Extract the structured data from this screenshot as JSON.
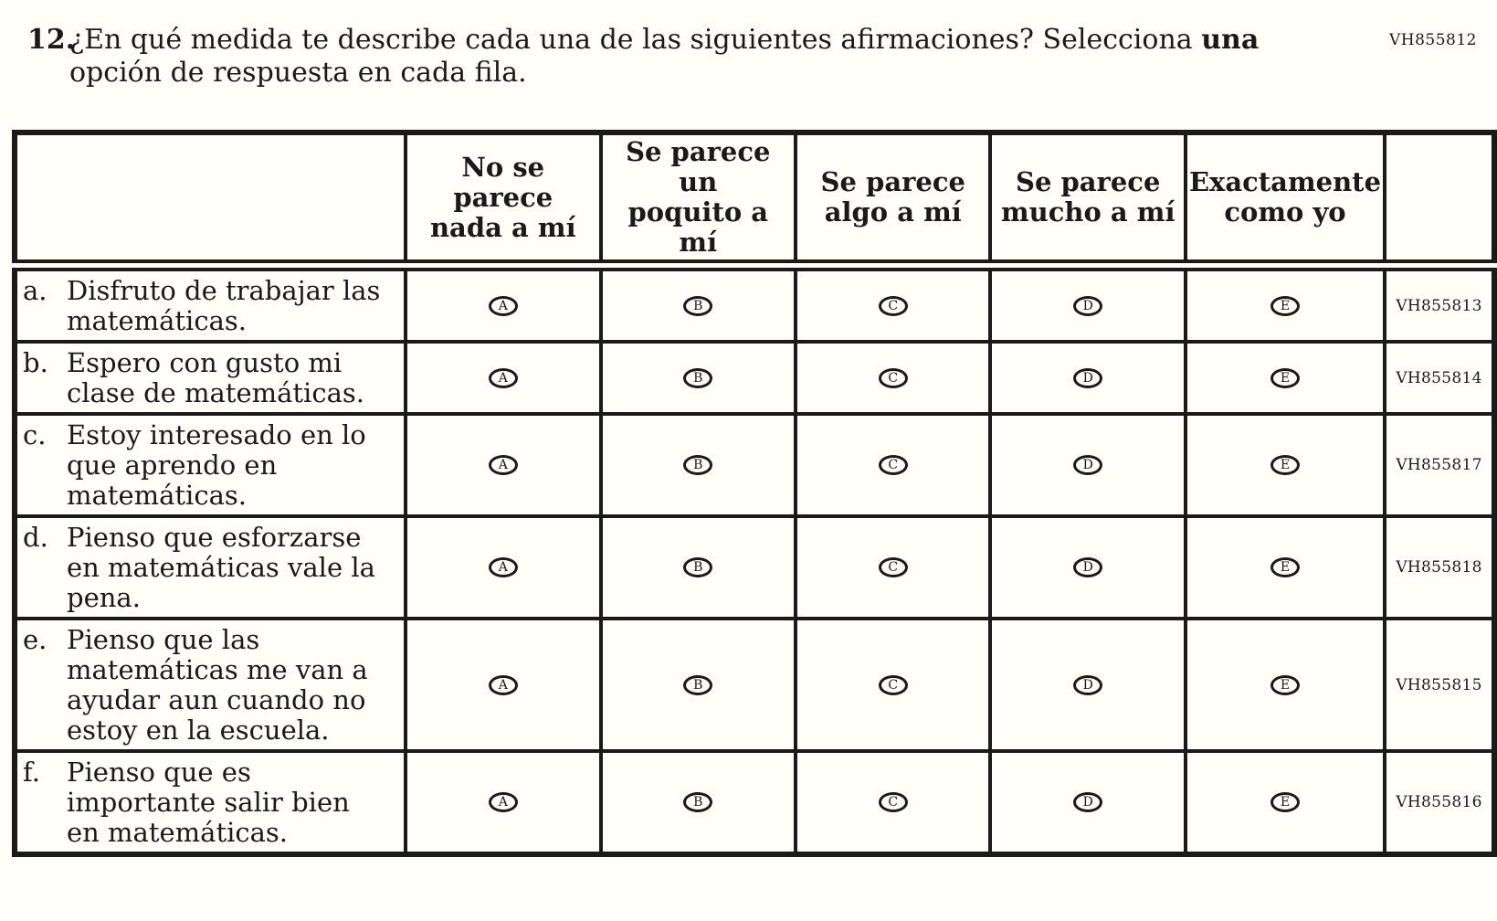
{
  "page": {
    "corner_code": "VH855812",
    "colors": {
      "ink": "#1a1a1a",
      "paper": "#fffef8"
    }
  },
  "question": {
    "number": "12.",
    "line1_regular": "¿En qué medida te describe cada una de las siguientes afirmaciones? Selecciona ",
    "line1_bold": "una",
    "line2": "opción de respuesta en cada fila."
  },
  "table": {
    "header": {
      "column_lines": [
        [
          "No se parece",
          "nada a mí"
        ],
        [
          "Se parece un",
          "poquito a",
          "mí"
        ],
        [
          "Se parece",
          "algo a mí"
        ],
        [
          "Se parece",
          "mucho a mí"
        ],
        [
          "Exactamente",
          "como yo"
        ]
      ]
    },
    "bubble_letters": [
      "A",
      "B",
      "C",
      "D",
      "E"
    ],
    "rows": [
      {
        "label": "a.",
        "statement_lines": [
          "Disfruto de trabajar las",
          "matemáticas."
        ],
        "code": "VH855813"
      },
      {
        "label": "b.",
        "statement_lines": [
          "Espero con gusto mi",
          "clase de matemáticas."
        ],
        "code": "VH855814"
      },
      {
        "label": "c.",
        "statement_lines": [
          "Estoy interesado en lo",
          "que aprendo en",
          "matemáticas."
        ],
        "code": "VH855817"
      },
      {
        "label": "d.",
        "statement_lines": [
          "Pienso que esforzarse",
          "en matemáticas vale la",
          "pena."
        ],
        "code": "VH855818"
      },
      {
        "label": "e.",
        "statement_lines": [
          "Pienso que las",
          "matemáticas me van a",
          "ayudar aun cuando no",
          "estoy en la escuela."
        ],
        "code": "VH855815"
      },
      {
        "label": "f.",
        "statement_lines": [
          "Pienso que es",
          "importante salir bien",
          "en matemáticas."
        ],
        "code": "VH855816"
      }
    ]
  }
}
